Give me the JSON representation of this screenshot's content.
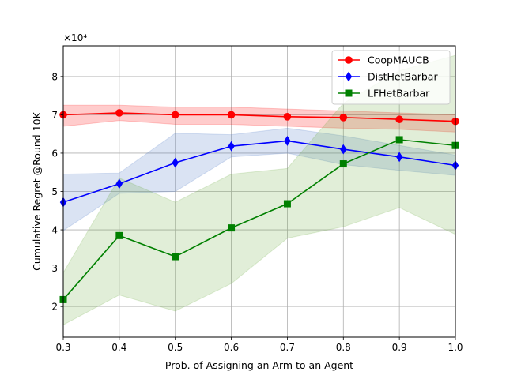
{
  "chart_data": {
    "type": "line",
    "title": "",
    "xlabel": "Prob. of Assigning an Arm to an Agent",
    "ylabel": "Cumulative Regret @Round 10K",
    "scale_label": "×10⁴",
    "xlim": [
      0.3,
      1.0
    ],
    "ylim": [
      1.2,
      8.8
    ],
    "x_ticks": [
      "0.3",
      "0.4",
      "0.5",
      "0.6",
      "0.7",
      "0.8",
      "0.9",
      "1.0"
    ],
    "y_ticks": [
      "2",
      "3",
      "4",
      "5",
      "6",
      "7",
      "8"
    ],
    "grid": true,
    "legend_position": "top-right",
    "x": [
      0.3,
      0.4,
      0.5,
      0.6,
      0.7,
      0.8,
      0.9,
      1.0
    ],
    "series": [
      {
        "name": "CoopMAUCB",
        "color": "#ff0000",
        "marker": "circle",
        "values": [
          7.0,
          7.05,
          7.0,
          7.0,
          6.95,
          6.93,
          6.88,
          6.83
        ],
        "lower": [
          6.7,
          6.85,
          6.75,
          6.75,
          6.7,
          6.65,
          6.62,
          6.55
        ],
        "upper": [
          7.25,
          7.25,
          7.2,
          7.2,
          7.15,
          7.1,
          7.05,
          7.0
        ]
      },
      {
        "name": "DistHetBarbar",
        "color": "#0000ff",
        "marker": "diamond",
        "values": [
          4.72,
          5.2,
          5.75,
          6.18,
          6.32,
          6.1,
          5.9,
          5.68
        ],
        "lower": [
          3.98,
          4.95,
          5.0,
          5.9,
          6.0,
          5.7,
          5.55,
          5.42
        ],
        "upper": [
          5.45,
          5.48,
          6.52,
          6.48,
          6.65,
          6.45,
          6.2,
          5.95
        ]
      },
      {
        "name": "LFHetBarbar",
        "color": "#008000",
        "marker": "square",
        "values": [
          2.18,
          3.85,
          3.3,
          4.05,
          4.68,
          5.72,
          6.35,
          6.2
        ],
        "lower": [
          1.52,
          2.3,
          1.88,
          2.6,
          3.78,
          4.08,
          4.58,
          3.88
        ],
        "upper": [
          2.88,
          5.35,
          4.72,
          5.45,
          5.6,
          7.3,
          8.15,
          8.55
        ]
      }
    ]
  }
}
